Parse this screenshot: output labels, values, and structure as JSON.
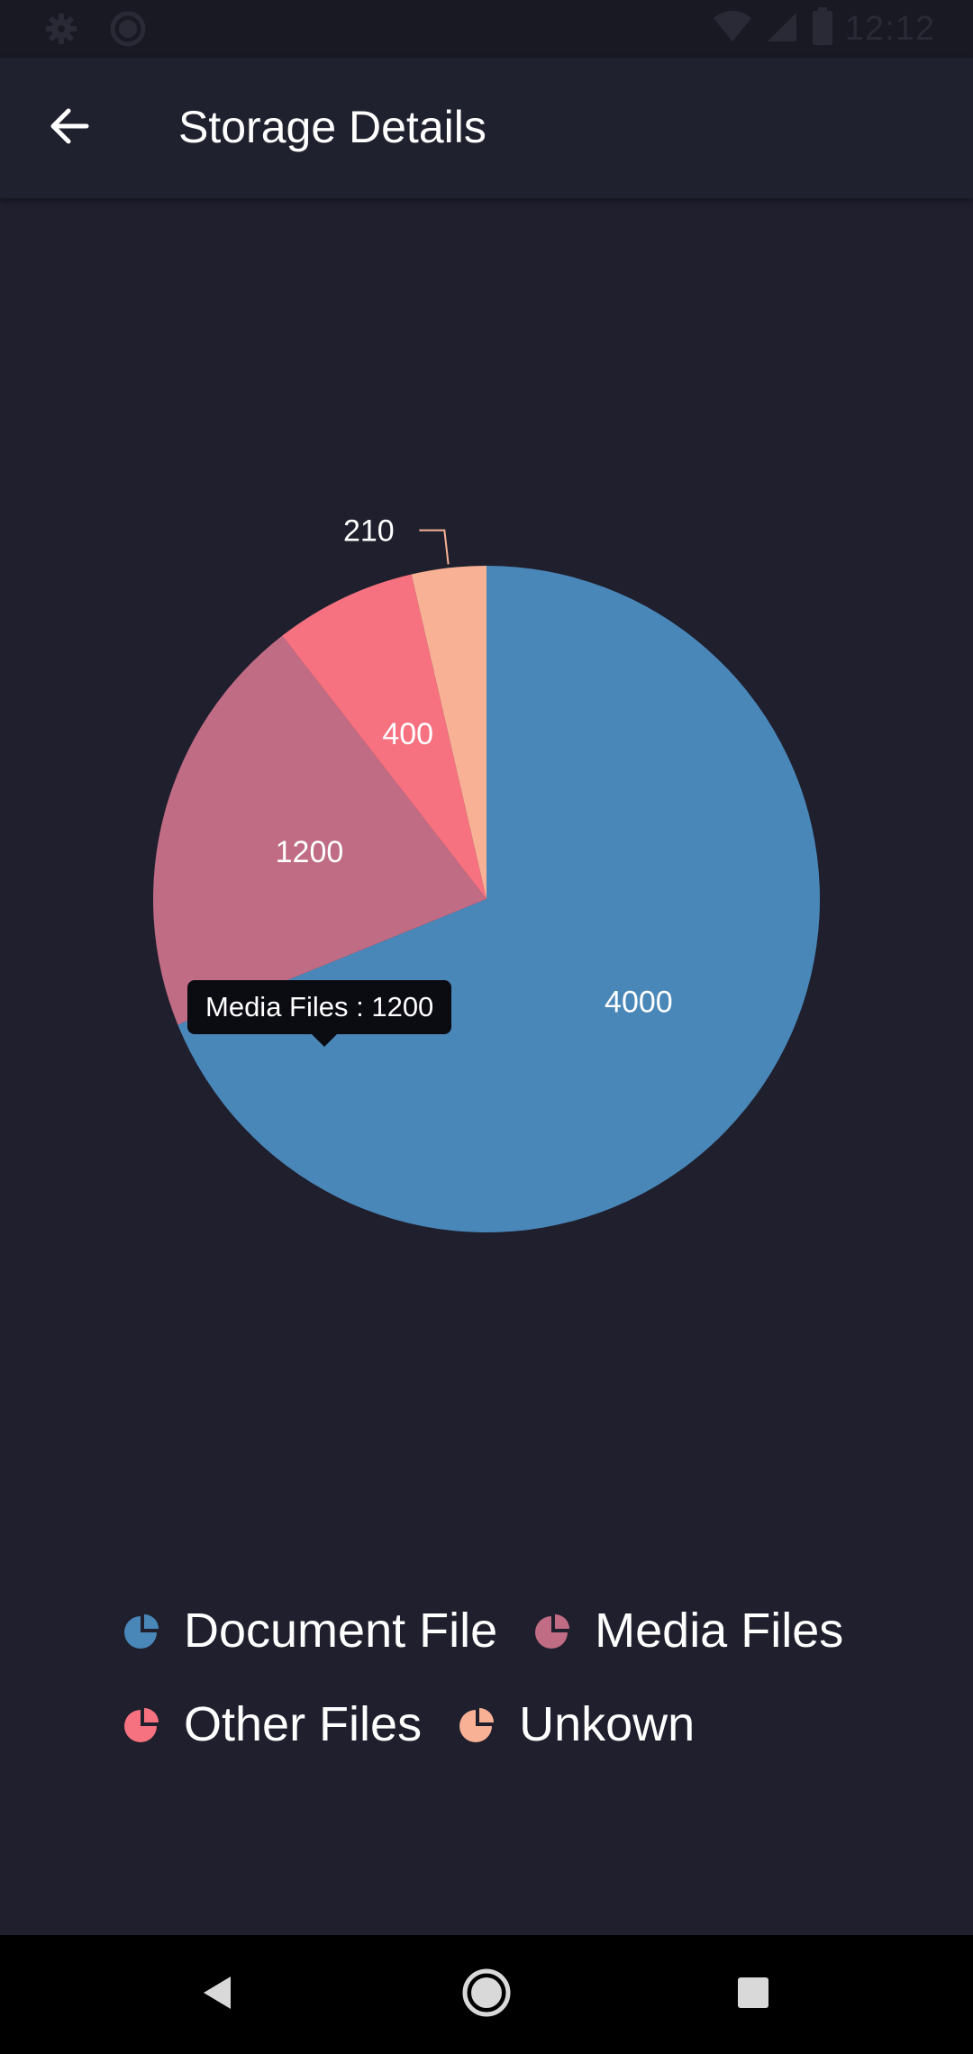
{
  "status_bar": {
    "time": "12:12"
  },
  "app_bar": {
    "title": "Storage Details",
    "back_icon": "arrow-left-icon"
  },
  "chart_data": {
    "type": "pie",
    "categories": [
      "Document File",
      "Media Files",
      "Other Files",
      "Unkown"
    ],
    "values": [
      4000,
      1200,
      400,
      210
    ],
    "colors": [
      "#4a87b9",
      "#c06c84",
      "#f67280",
      "#f8b195"
    ],
    "data_labels": [
      "4000",
      "1200",
      "400",
      "210"
    ],
    "tooltip": "Media Files : 1200",
    "legend_position": "bottom"
  },
  "legend": {
    "items": [
      {
        "label": "Document File",
        "color": "#4a87b9"
      },
      {
        "label": "Media Files",
        "color": "#c06c84"
      },
      {
        "label": "Other Files",
        "color": "#f67280"
      },
      {
        "label": "Unkown",
        "color": "#f8b195"
      }
    ]
  },
  "nav_bar": {
    "back_icon": "triangle-back-icon",
    "home_icon": "circle-home-icon",
    "recents_icon": "square-recents-icon"
  }
}
